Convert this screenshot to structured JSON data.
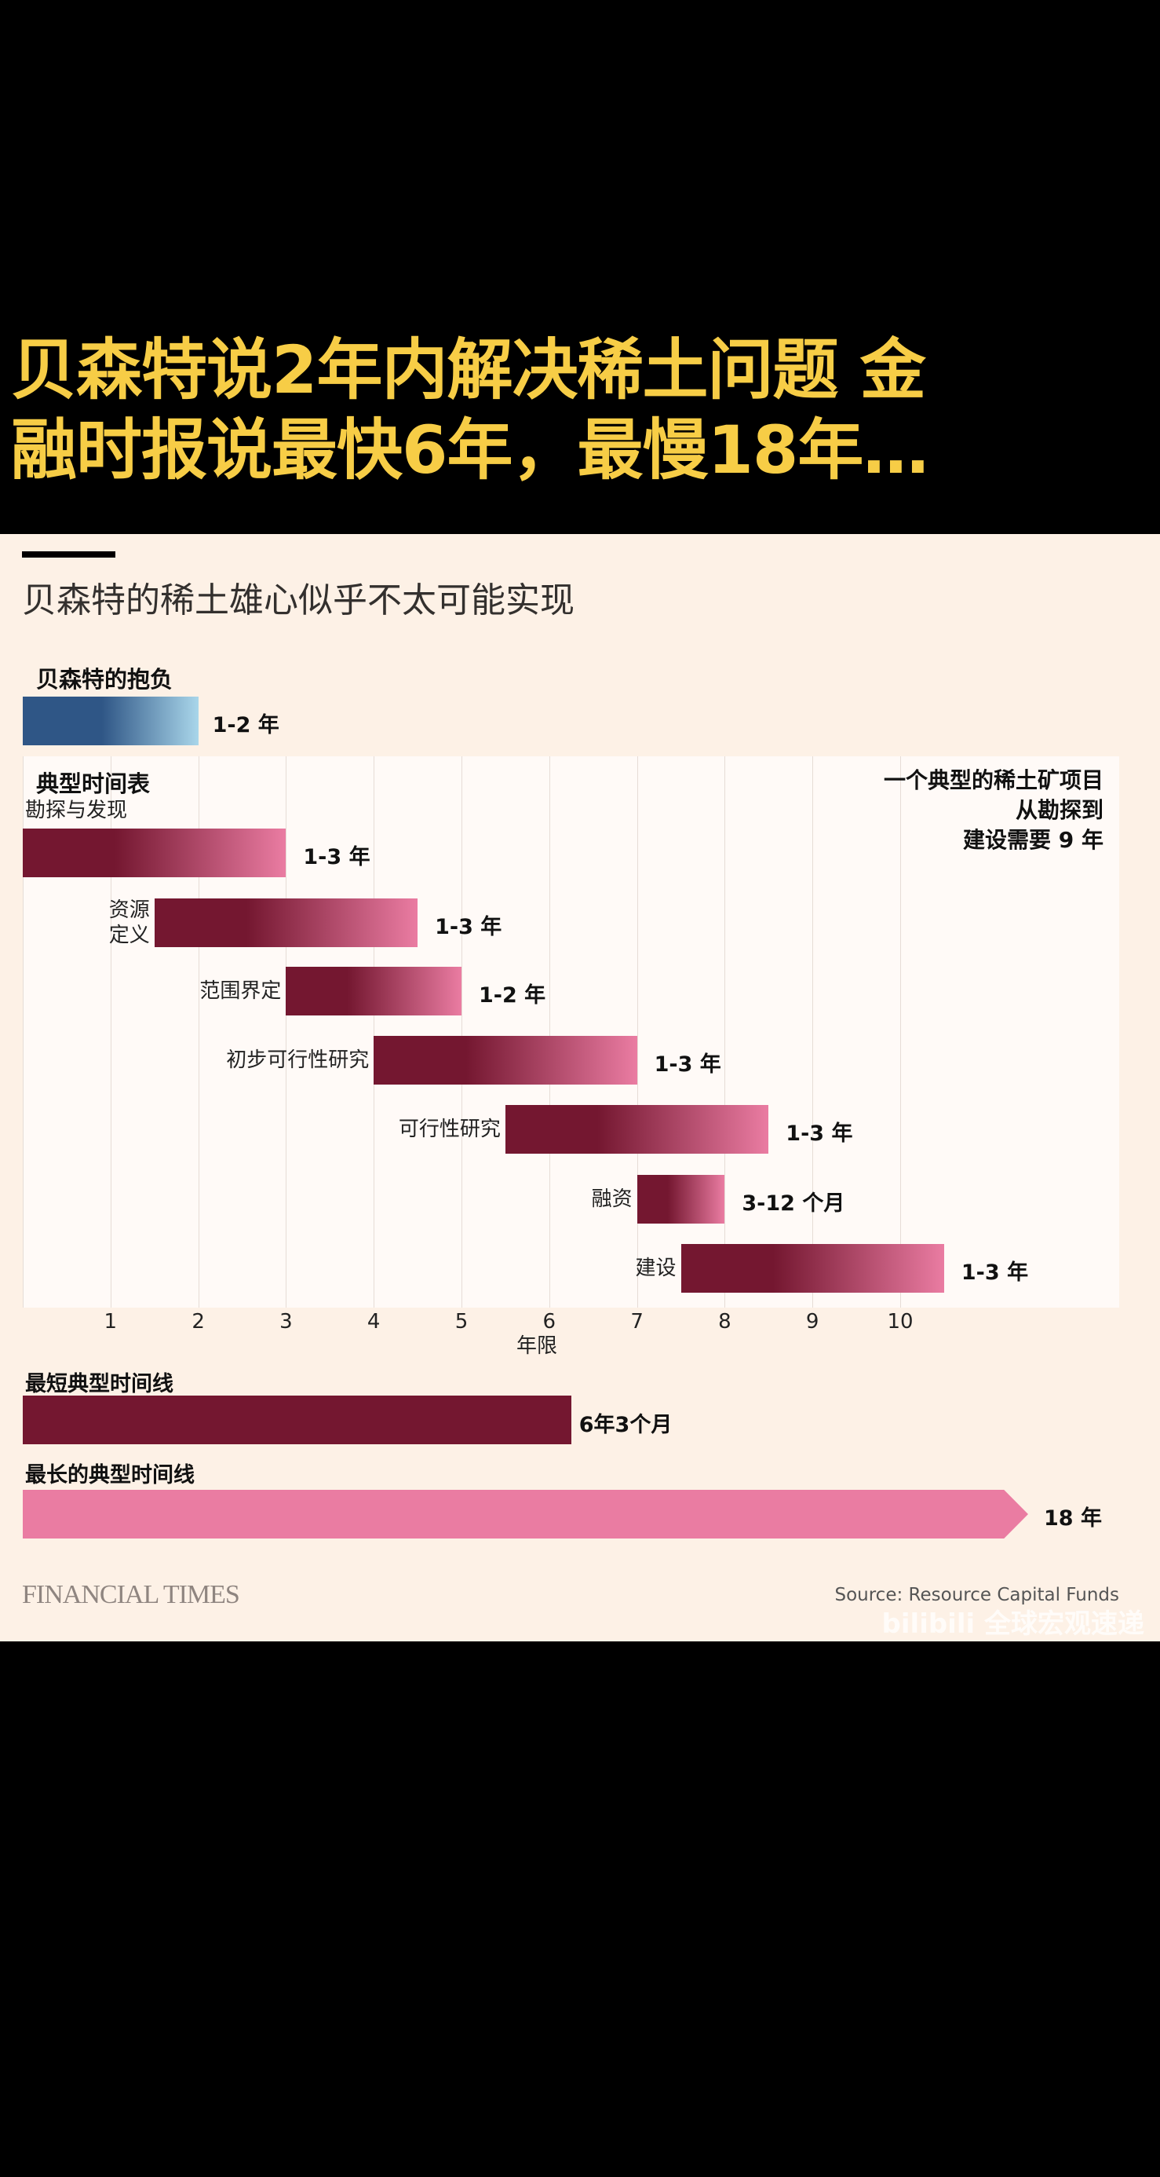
{
  "headline": {
    "line1": "贝森特说2年内解决稀土问题 金",
    "line2": "融时报说最快6年，最慢18年…"
  },
  "watermark": "bilibili 全球宏观速递",
  "chart_data": {
    "type": "bar",
    "title": "贝森特的稀土雄心似乎不太可能实现",
    "xlabel": "年限",
    "xlim": [
      0,
      12.4
    ],
    "xticks": [
      "1",
      "2",
      "3",
      "4",
      "5",
      "6",
      "7",
      "8",
      "9",
      "10"
    ],
    "grid": true,
    "colors": {
      "ambition_start": "#2f5686",
      "ambition_end": "#a9d6ea",
      "phase_start": "#741730",
      "phase_end": "#ea7ca2",
      "longest": "#ea7ca2",
      "shortest": "#741730"
    },
    "ambition": {
      "heading": "贝森特的抱负",
      "start": 0,
      "end": 2,
      "label": "1-2 年"
    },
    "typical": {
      "heading": "典型时间表",
      "note": [
        "一个典型的稀土矿项目",
        "从勘探到",
        "建设需要 9 年"
      ],
      "phases": [
        {
          "name": "勘探与发现",
          "start": 0,
          "end": 3,
          "label": "1-3 年"
        },
        {
          "name": "资源\n定义",
          "start": 1.5,
          "end": 4.5,
          "label": "1-3 年"
        },
        {
          "name": "范围界定",
          "start": 3,
          "end": 5,
          "label": "1-2 年"
        },
        {
          "name": "初步可行性研究",
          "start": 4,
          "end": 7,
          "label": "1-3 年"
        },
        {
          "name": "可行性研究",
          "start": 5.5,
          "end": 8.5,
          "label": "1-3 年"
        },
        {
          "name": "融资",
          "start": 7,
          "end": 8,
          "label": "3-12 个月"
        },
        {
          "name": "建设",
          "start": 7.5,
          "end": 10.5,
          "label": "1-3 年"
        }
      ]
    },
    "shortest": {
      "heading": "最短典型时间线",
      "value": 6.25,
      "label": "6年3个月"
    },
    "longest": {
      "heading": "最长的典型时间线",
      "value": 18,
      "label": "18 年"
    }
  },
  "footer": {
    "brand": "FINANCIAL TIMES",
    "source": "Source: Resource Capital Funds"
  }
}
